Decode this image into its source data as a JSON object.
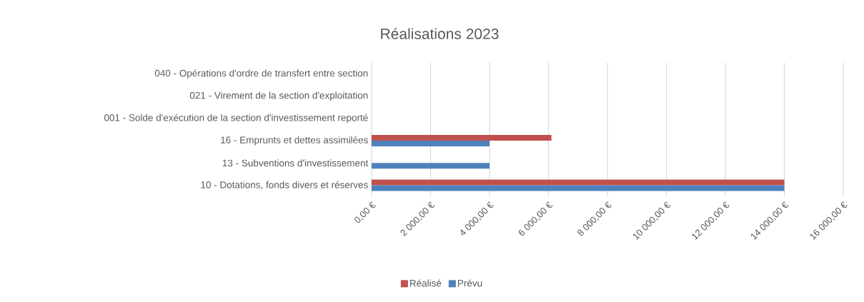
{
  "chart_data": {
    "type": "bar",
    "orientation": "horizontal",
    "title": "Réalisations 2023",
    "categories": [
      "040 - Opérations d'ordre de transfert entre section",
      "021 - Virement de la section d'exploitation",
      "001 - Solde d'exécution de la section d'investissement reporté",
      "16 - Emprunts et dettes assimilées",
      "13 - Subventions d'investissement",
      "10 - Dotations, fonds divers et réserves"
    ],
    "series": [
      {
        "name": "Réalisé",
        "color": "#c0504d",
        "values": [
          null,
          null,
          null,
          6100,
          null,
          14000
        ]
      },
      {
        "name": "Prévu",
        "color": "#4f81bd",
        "values": [
          null,
          null,
          null,
          4000,
          4000,
          14000
        ]
      }
    ],
    "xlim": [
      0,
      16000
    ],
    "xticks": [
      {
        "value": 0,
        "label": "0,00 €"
      },
      {
        "value": 2000,
        "label": "2 000,00 €"
      },
      {
        "value": 4000,
        "label": "4 000,00 €"
      },
      {
        "value": 6000,
        "label": "6 000,00 €"
      },
      {
        "value": 8000,
        "label": "8 000,00 €"
      },
      {
        "value": 10000,
        "label": "10 000,00 €"
      },
      {
        "value": 12000,
        "label": "12 000,00 €"
      },
      {
        "value": 14000,
        "label": "14 000,00 €"
      },
      {
        "value": 16000,
        "label": "16 000,00 €"
      }
    ],
    "grid": "x",
    "legend": "bottom"
  }
}
